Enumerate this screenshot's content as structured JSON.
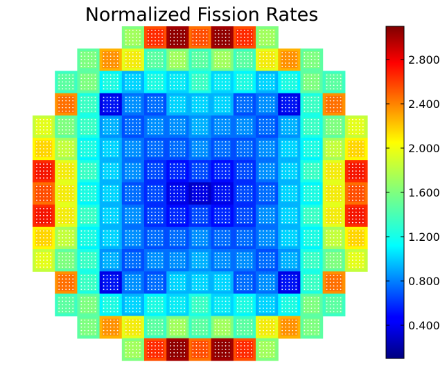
{
  "chart_data": {
    "type": "heatmap",
    "title": "Normalized Fission Rates",
    "xlabel": "",
    "ylabel": "",
    "colormap": "jet",
    "colorbar": {
      "range": [
        0.1,
        3.1
      ],
      "ticks": [
        0.4,
        0.8,
        1.2,
        1.6,
        2.0,
        2.4,
        2.8
      ],
      "tick_labels": [
        "0.400",
        "0.800",
        "1.200",
        "1.600",
        "2.000",
        "2.400",
        "2.800"
      ]
    },
    "grid": {
      "rows": 15,
      "cols": 15,
      "row_lengths": [
        7,
        11,
        13,
        13,
        15,
        15,
        15,
        15,
        15,
        15,
        15,
        13,
        13,
        11,
        7
      ],
      "values": [
        [
          1.6,
          2.5,
          3.0,
          2.4,
          3.0,
          2.5,
          1.6
        ],
        [
          1.5,
          2.2,
          1.9,
          1.4,
          1.6,
          1.4,
          1.6,
          1.4,
          1.9,
          2.2,
          1.5
        ],
        [
          1.4,
          1.5,
          1.2,
          1.0,
          1.2,
          1.1,
          1.3,
          1.1,
          1.2,
          1.0,
          1.2,
          1.5,
          1.4
        ],
        [
          2.3,
          1.3,
          0.4,
          0.8,
          0.7,
          1.0,
          1.0,
          1.0,
          0.7,
          0.8,
          0.4,
          1.3,
          2.3
        ],
        [
          1.8,
          1.5,
          1.3,
          0.9,
          0.7,
          0.8,
          0.8,
          0.9,
          0.8,
          0.8,
          0.7,
          0.9,
          1.3,
          1.5,
          1.8
        ],
        [
          2.0,
          1.7,
          1.2,
          1.0,
          0.8,
          0.7,
          0.7,
          0.8,
          0.7,
          0.7,
          0.8,
          1.0,
          1.2,
          1.7,
          2.0
        ],
        [
          2.6,
          1.9,
          1.3,
          1.0,
          0.8,
          0.6,
          0.5,
          0.6,
          0.5,
          0.6,
          0.8,
          1.0,
          1.3,
          1.9,
          2.6
        ],
        [
          2.4,
          1.9,
          1.2,
          1.0,
          0.7,
          0.6,
          0.4,
          0.3,
          0.4,
          0.6,
          0.7,
          1.0,
          1.2,
          1.9,
          2.4
        ],
        [
          2.6,
          1.9,
          1.3,
          1.0,
          0.8,
          0.6,
          0.5,
          0.6,
          0.5,
          0.6,
          0.8,
          1.0,
          1.3,
          1.9,
          2.6
        ],
        [
          2.0,
          1.7,
          1.2,
          1.0,
          0.8,
          0.7,
          0.7,
          0.8,
          0.7,
          0.7,
          0.8,
          1.0,
          1.2,
          1.7,
          2.0
        ],
        [
          1.8,
          1.5,
          1.3,
          0.9,
          0.7,
          0.8,
          0.8,
          0.9,
          0.8,
          0.8,
          0.7,
          0.9,
          1.3,
          1.5,
          1.8
        ],
        [
          2.3,
          1.3,
          0.4,
          0.8,
          0.7,
          1.0,
          1.0,
          1.0,
          0.7,
          0.8,
          0.4,
          1.3,
          2.3
        ],
        [
          1.4,
          1.5,
          1.2,
          1.0,
          1.2,
          1.1,
          1.3,
          1.1,
          1.2,
          1.0,
          1.2,
          1.5,
          1.4
        ],
        [
          1.5,
          2.2,
          1.9,
          1.4,
          1.6,
          1.4,
          1.6,
          1.4,
          1.9,
          2.2,
          1.5
        ],
        [
          1.6,
          2.5,
          3.0,
          2.4,
          3.0,
          2.5,
          1.6
        ]
      ]
    }
  }
}
